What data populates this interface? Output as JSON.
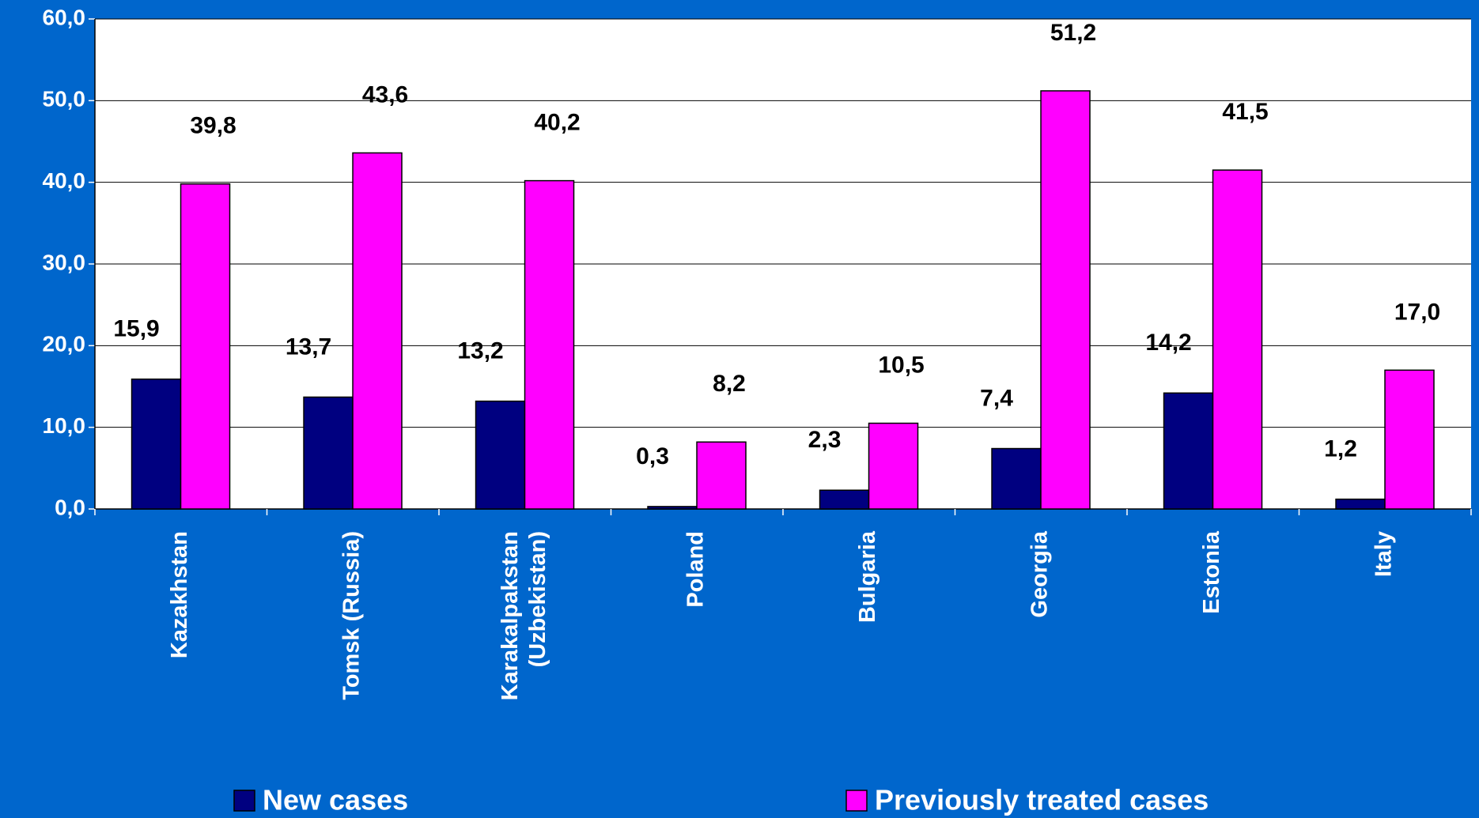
{
  "chart_data": {
    "type": "bar",
    "categories": [
      "Kazakhstan",
      "Tomsk (Russia)",
      "Karakalpakstan (Uzbekistan)",
      "Poland",
      "Bulgaria",
      "Georgia",
      "Estonia",
      "Italy"
    ],
    "series": [
      {
        "name": "New cases",
        "color": "#000080",
        "values": [
          15.9,
          13.7,
          13.2,
          0.3,
          2.3,
          7.4,
          14.2,
          1.2
        ],
        "value_labels": [
          "15,9",
          "13,7",
          "13,2",
          "0,3",
          "2,3",
          "7,4",
          "14,2",
          "1,2"
        ]
      },
      {
        "name": "Previously treated cases",
        "color": "#ff00ff",
        "values": [
          39.8,
          43.6,
          40.2,
          8.2,
          10.5,
          51.2,
          41.5,
          17.0
        ],
        "value_labels": [
          "39,8",
          "43,6",
          "40,2",
          "8,2",
          "10,5",
          "51,2",
          "41,5",
          "17,0"
        ]
      }
    ],
    "ylim": [
      0,
      60
    ],
    "yticks": [
      {
        "value": 0,
        "label": "0,0"
      },
      {
        "value": 10,
        "label": "10,0"
      },
      {
        "value": 20,
        "label": "20,0"
      },
      {
        "value": 30,
        "label": "30,0"
      },
      {
        "value": 40,
        "label": "40,0"
      },
      {
        "value": 50,
        "label": "50,0"
      },
      {
        "value": 60,
        "label": "60,0"
      }
    ],
    "grid": true,
    "legend": "bottom"
  }
}
